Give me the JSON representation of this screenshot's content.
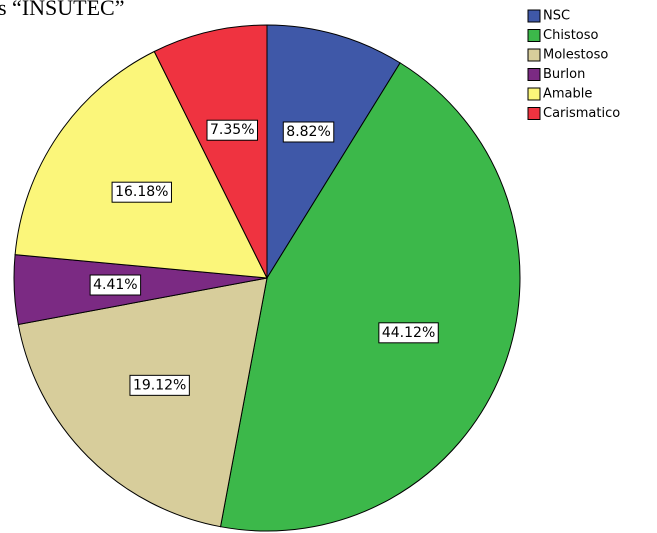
{
  "chart_data": {
    "type": "pie",
    "title": "s “INSUTEC”",
    "categories": [
      "NSC",
      "Chistoso",
      "Molestoso",
      "Burlon",
      "Amable",
      "Carismatico"
    ],
    "values": [
      8.82,
      44.12,
      19.12,
      4.41,
      16.18,
      7.35
    ],
    "value_labels": [
      "8.82%",
      "44.12%",
      "19.12%",
      "4.41%",
      "16.18%",
      "7.35%"
    ],
    "colors": [
      "#3f58a8",
      "#3cb84a",
      "#d7cd9b",
      "#7b2a83",
      "#fbf67a",
      "#ef3340"
    ],
    "legend": "top-right"
  }
}
